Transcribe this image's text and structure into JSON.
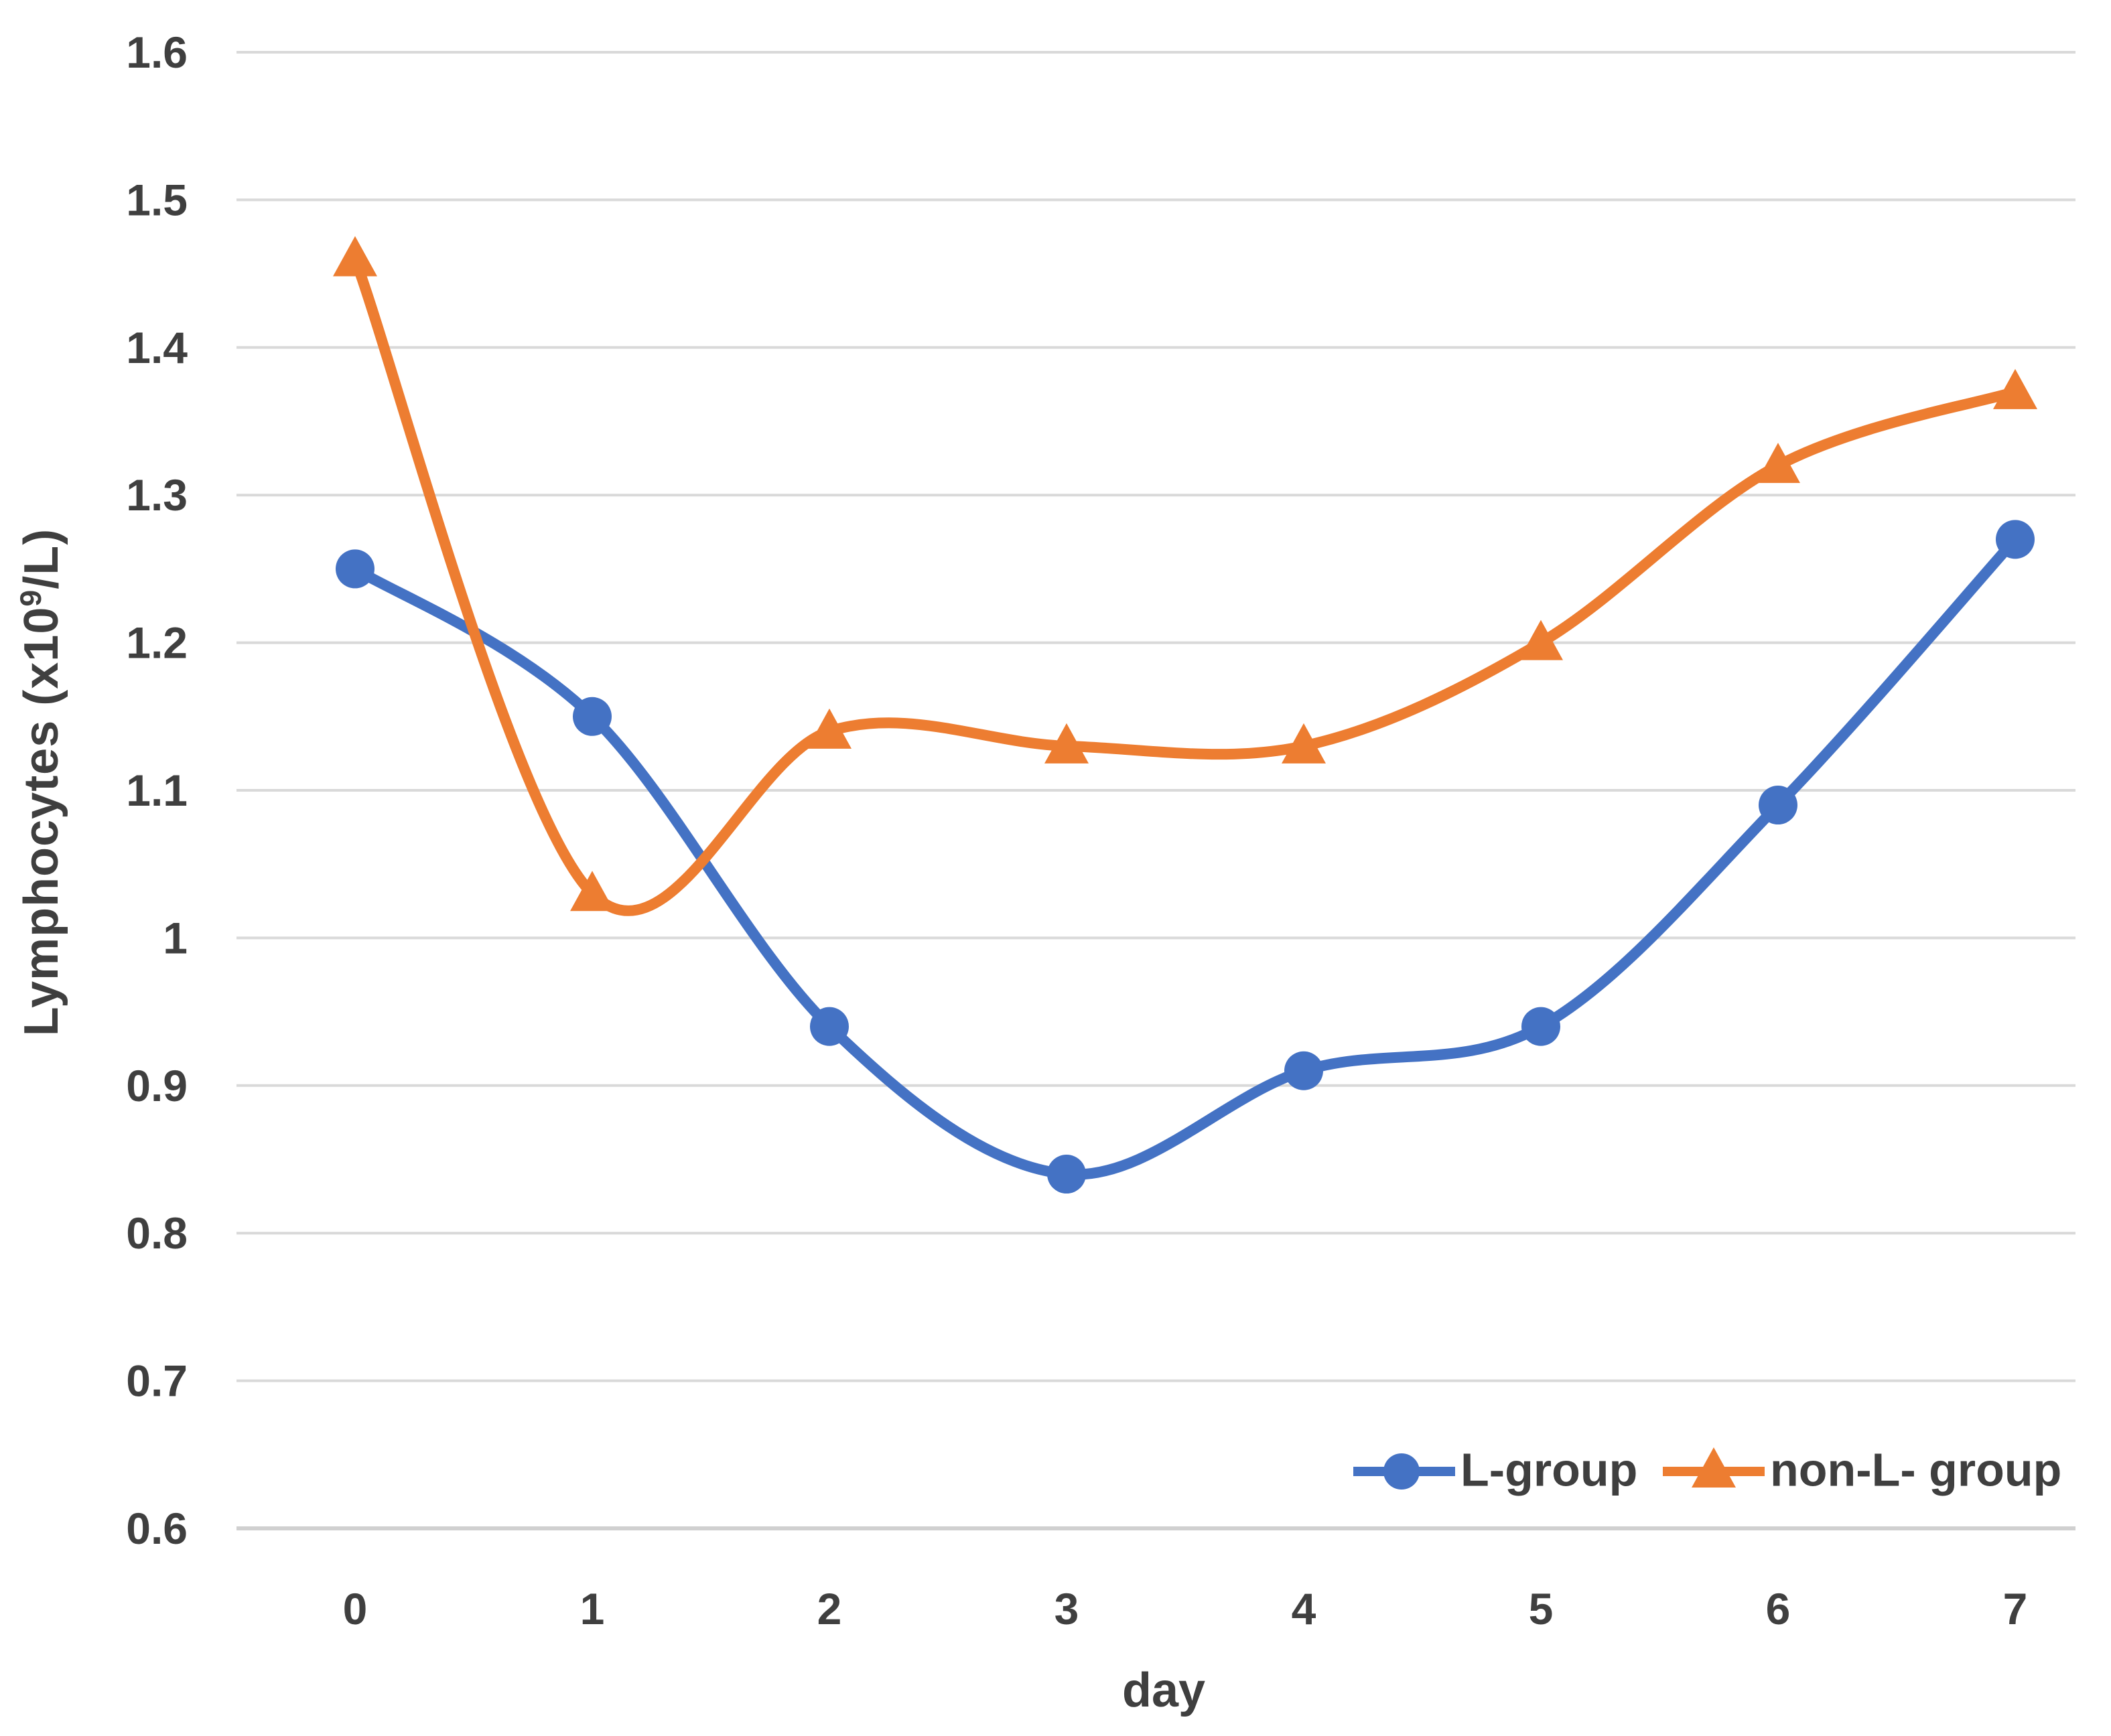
{
  "chart_data": {
    "type": "line",
    "title": "",
    "xlabel": "day",
    "ylabel": "Lymphocytes (x10⁹/L)",
    "ylabel_parts": {
      "prefix": "Lymphocytes (x10",
      "sup": "9",
      "suffix": "/L)"
    },
    "x": [
      0,
      1,
      2,
      3,
      4,
      5,
      6,
      7
    ],
    "x_tick_labels": [
      "0",
      "1",
      "2",
      "3",
      "4",
      "5",
      "6",
      "7"
    ],
    "y_tick_labels": [
      "1.6",
      "1.5",
      "1.4",
      "1.3",
      "1.2",
      "1.1",
      "1",
      "0.9",
      "0.8",
      "0.7",
      "0.6"
    ],
    "y_tick_values": [
      1.6,
      1.5,
      1.4,
      1.3,
      1.2,
      1.1,
      1.0,
      0.9,
      0.8,
      0.7,
      0.6
    ],
    "ylim": [
      0.6,
      1.6
    ],
    "grid": true,
    "line_style": "smooth",
    "legend_position": "bottom-right-inside",
    "series": [
      {
        "name": "L-group",
        "marker": "circle",
        "color": "#4472C4",
        "values": [
          1.25,
          1.15,
          0.94,
          0.84,
          0.91,
          0.94,
          1.09,
          1.27
        ]
      },
      {
        "name": "non-L- group",
        "marker": "triangle",
        "color": "#ED7D31",
        "values": [
          1.46,
          1.03,
          1.14,
          1.13,
          1.13,
          1.2,
          1.32,
          1.37
        ]
      }
    ],
    "colors": {
      "gridline": "#D9D9D9",
      "axis_line": "#D0D0D0",
      "tick_text": "#3F3F3F",
      "background": "#FFFFFF"
    }
  }
}
